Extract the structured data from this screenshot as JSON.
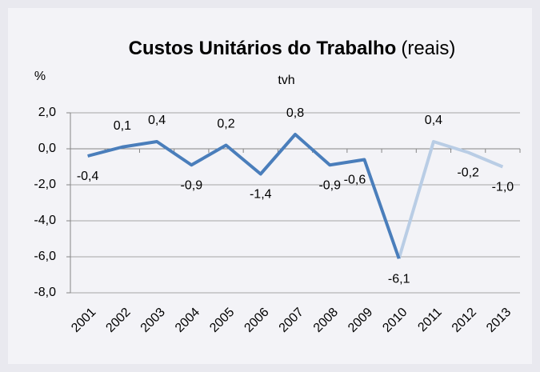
{
  "chart_data": {
    "type": "line",
    "title": "Custos Unitários do Trabalho",
    "title_note": "(reais)",
    "subtitle": "tvh",
    "y_label": "%",
    "categories": [
      "2001",
      "2002",
      "2003",
      "2004",
      "2005",
      "2006",
      "2007",
      "2008",
      "2009",
      "2010",
      "2011",
      "2012",
      "2013"
    ],
    "series": [
      {
        "color": "#4a7ebb",
        "values": [
          -0.4,
          0.1,
          0.4,
          -0.9,
          0.2,
          -1.4,
          0.8,
          -0.9,
          -0.6,
          -6.1,
          null,
          null,
          null
        ],
        "value_labels": [
          "-0,4",
          "0,1",
          "0,4",
          "-0,9",
          "0,2",
          "-1,4",
          "0,8",
          "-0,9",
          "-0,6",
          "-6,1",
          null,
          null,
          null
        ]
      },
      {
        "color": "#b9cde5",
        "values": [
          null,
          null,
          null,
          null,
          null,
          null,
          null,
          null,
          null,
          -6.1,
          0.4,
          -0.2,
          -1.0
        ],
        "value_labels": [
          null,
          null,
          null,
          null,
          null,
          null,
          null,
          null,
          null,
          null,
          "0,4",
          "-0,2",
          "-1,0"
        ]
      }
    ],
    "ylim": [
      -8.0,
      2.0
    ],
    "yticks": [
      {
        "value": -8.0,
        "label": "-8,0"
      },
      {
        "value": -6.0,
        "label": "-6,0"
      },
      {
        "value": -4.0,
        "label": "-4,0"
      },
      {
        "value": -2.0,
        "label": "-2,0"
      },
      {
        "value": 0.0,
        "label": "0,0"
      },
      {
        "value": 2.0,
        "label": "2,0"
      }
    ],
    "grid": true
  }
}
